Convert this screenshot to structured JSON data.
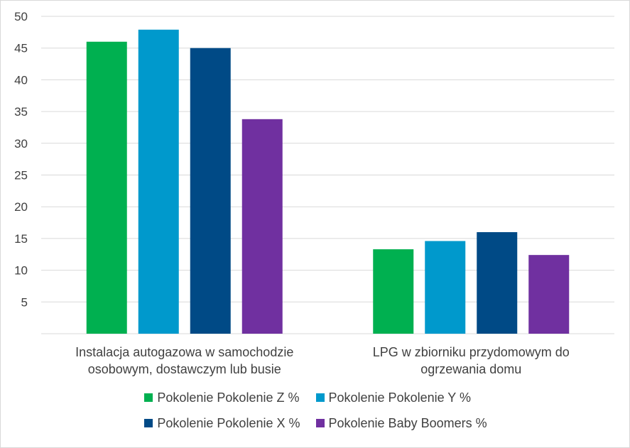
{
  "chart_data": {
    "type": "bar",
    "categories": [
      [
        "Instalacja autogazowa w samochodzie",
        "osobowym, dostawczym lub busie"
      ],
      [
        "LPG w zbiorniku przydomowym do",
        "ogrzewania domu"
      ]
    ],
    "series": [
      {
        "name": "Pokolenie Pokolenie Z %",
        "color": "#00b050",
        "values": [
          46,
          13.3
        ]
      },
      {
        "name": "Pokolenie Pokolenie Y %",
        "color": "#0099cc",
        "values": [
          47.9,
          14.6
        ]
      },
      {
        "name": "Pokolenie Pokolenie X %",
        "color": "#004a86",
        "values": [
          45,
          16
        ]
      },
      {
        "name": "Pokolenie Baby Boomers %",
        "color": "#7030a0",
        "values": [
          33.8,
          12.4
        ]
      }
    ],
    "yticks": [
      "5",
      "10",
      "15",
      "20",
      "25",
      "30",
      "35",
      "40",
      "45",
      "50"
    ],
    "ylim": [
      0,
      50
    ],
    "grid": true,
    "legend_position": "bottom",
    "title": "",
    "xlabel": "",
    "ylabel": ""
  }
}
